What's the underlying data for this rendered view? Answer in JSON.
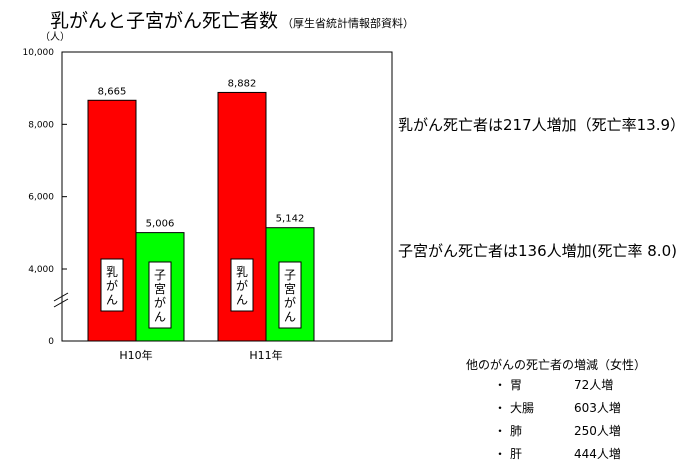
{
  "title": {
    "main": "乳がんと子宮がん死亡者数",
    "source": "（厚生省統計情報部資料）"
  },
  "chart_data": {
    "type": "bar",
    "y_unit": "（人）",
    "ylim": [
      0,
      10000
    ],
    "yticks": [
      "0",
      "4,000",
      "6,000",
      "8,000",
      "10,000"
    ],
    "axis_break": true,
    "categories": [
      "H10年",
      "H11年"
    ],
    "series": [
      {
        "name": "乳がん",
        "color": "#ff0000",
        "values": [
          8665,
          8882
        ],
        "labels": [
          "8,665",
          "8,882"
        ]
      },
      {
        "name": "子宮がん",
        "color": "#00ff00",
        "values": [
          5006,
          5142
        ],
        "labels": [
          "5,006",
          "5,142"
        ]
      }
    ]
  },
  "annotations": [
    "乳がん死亡者は217人増加（死亡率13.9）",
    "子宮がん死亡者は136人増加(死亡率 8.0)"
  ],
  "side_panel": {
    "heading": "他のがんの死亡者の増減（女性）",
    "bullet": "・",
    "items": [
      {
        "organ": "胃",
        "value": "72人増"
      },
      {
        "organ": "大腸",
        "value": "603人増"
      },
      {
        "organ": "肺",
        "value": "250人増"
      },
      {
        "organ": "肝",
        "value": "444人増"
      }
    ]
  }
}
